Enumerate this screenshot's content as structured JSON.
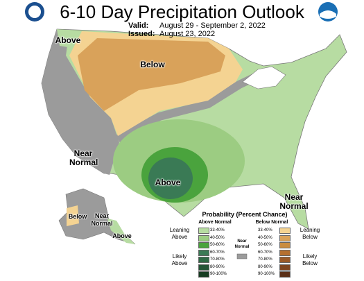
{
  "header": {
    "title": "6-10 Day Precipitation Outlook",
    "valid_label": "Valid:",
    "valid": "August 29 - September 2, 2022",
    "issued_label": "Issued:",
    "issued": "August 23, 2022"
  },
  "map": {
    "labels": [
      "Above",
      "Below",
      "Near Normal",
      "Above",
      "Near Normal",
      "Below",
      "Near Normal",
      "Above"
    ]
  },
  "legend": {
    "title": "Probability (Percent Chance)",
    "above_header": "Above Normal",
    "below_header": "Below Normal",
    "leaning_above": "Leaning Above",
    "likely_above": "Likely Above",
    "near_normal": "Near Normal",
    "leaning_below": "Leaning Below",
    "likely_below": "Likely Below",
    "above_ranges": [
      "33-40%",
      "40-50%",
      "50-60%",
      "60-70%",
      "70-80%",
      "80-90%",
      "90-100%"
    ],
    "below_ranges": [
      "33-40%",
      "40-50%",
      "50-60%",
      "60-70%",
      "70-80%",
      "80-90%",
      "90-100%"
    ]
  }
}
